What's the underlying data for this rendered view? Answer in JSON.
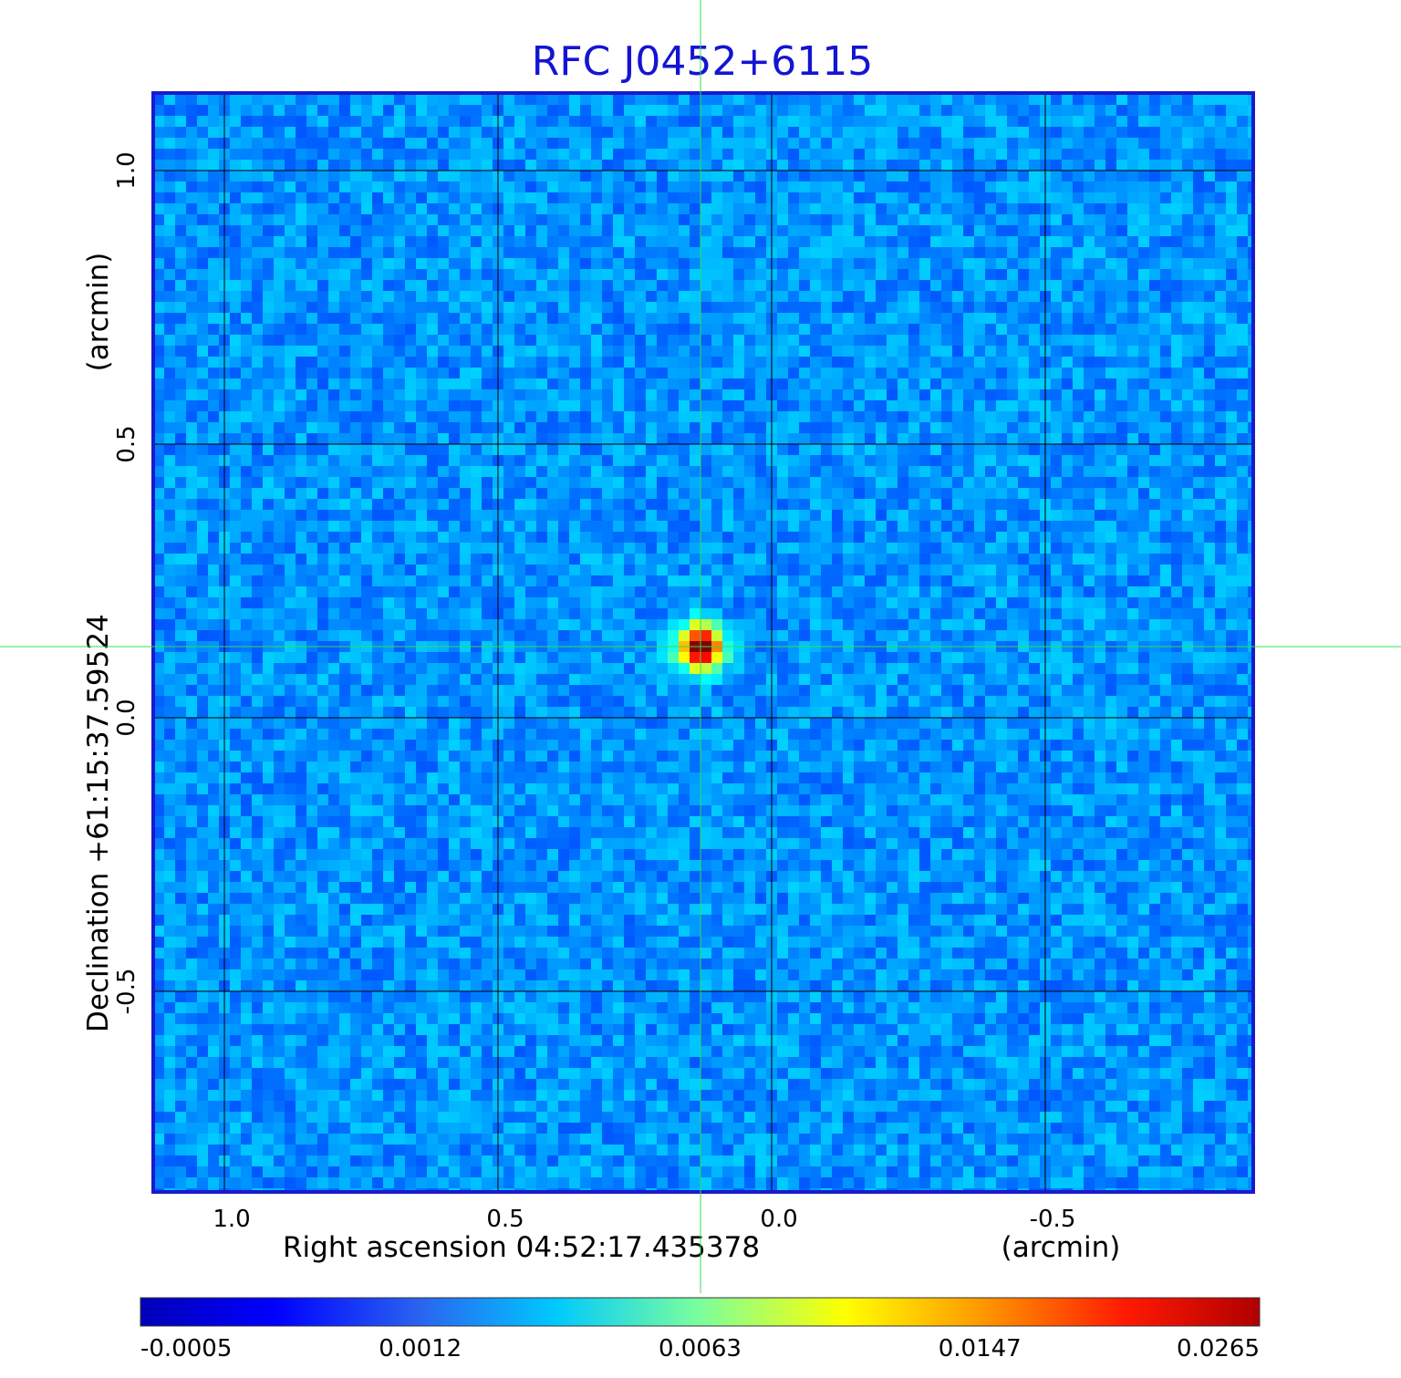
{
  "chart_data": {
    "type": "heatmap",
    "title": "RFC J0452+6115",
    "xlabel": "Right ascension  04:52:17.435378",
    "xunit": "(arcmin)",
    "ylabel": "Declination  +61:15:37.59524",
    "yunit": "(arcmin)",
    "x_axis": {
      "inverted": true,
      "ticks": [
        1.0,
        0.5,
        0.0,
        -0.5
      ],
      "tick_labels": [
        "1.0",
        "0.5",
        "0.0",
        "-0.5"
      ]
    },
    "y_axis": {
      "ticks": [
        1.0,
        0.5,
        0.0,
        -0.5
      ],
      "tick_labels": [
        "1.0",
        "0.5",
        "0.0",
        "-0.5"
      ]
    },
    "grid": true,
    "crosshair": {
      "x_arcmin": 0.13,
      "y_arcmin": 0.13,
      "color": "#33dd55"
    },
    "source_peak": {
      "x_arcmin": 0.13,
      "y_arcmin": 0.13,
      "value": 0.0265
    },
    "colorbar": {
      "colormap": "jet",
      "tick_labels": [
        "-0.0005",
        "0.0012",
        "0.0063",
        "0.0147",
        "0.0265"
      ]
    },
    "colors": {
      "title": "#1414d2",
      "frame": "#1a1acc",
      "grid": "#000000"
    }
  }
}
